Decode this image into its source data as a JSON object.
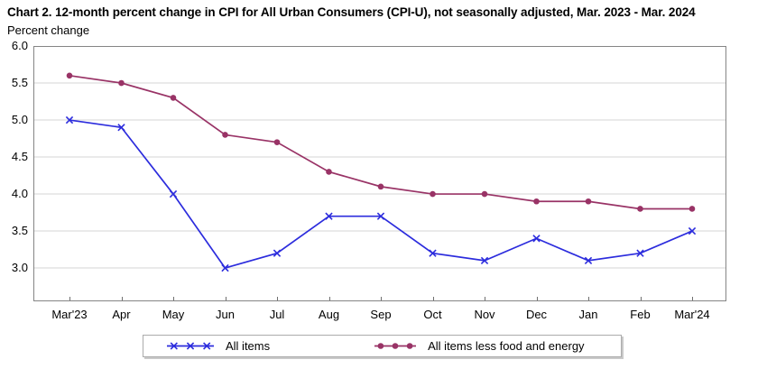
{
  "figure": {
    "title": "Chart 2. 12-month percent change in CPI for All Urban Consumers (CPI-U), not seasonally adjusted, Mar. 2023 - Mar. 2024",
    "units_label": "Percent change"
  },
  "chart_data": {
    "type": "line",
    "title": "Chart 2. 12-month percent change in CPI for All Urban Consumers (CPI-U), not seasonally adjusted, Mar. 2023 - Mar. 2024",
    "xlabel": "",
    "ylabel": "Percent change",
    "categories": [
      "Mar'23",
      "Apr",
      "May",
      "Jun",
      "Jul",
      "Aug",
      "Sep",
      "Oct",
      "Nov",
      "Dec",
      "Jan",
      "Feb",
      "Mar'24"
    ],
    "series": [
      {
        "name": "All items",
        "marker": "x",
        "color": "#2c2cdd",
        "values": [
          5.0,
          4.9,
          4.0,
          3.0,
          3.2,
          3.7,
          3.7,
          3.2,
          3.1,
          3.4,
          3.1,
          3.2,
          3.5
        ]
      },
      {
        "name": "All items less food and energy",
        "marker": "dot",
        "color": "#993366",
        "values": [
          5.6,
          5.5,
          5.3,
          4.8,
          4.7,
          4.3,
          4.1,
          4.0,
          4.0,
          3.9,
          3.9,
          3.8,
          3.8
        ]
      }
    ],
    "y_ticks": [
      "6.0",
      "5.5",
      "5.0",
      "4.5",
      "4.0",
      "3.5",
      "3.0"
    ],
    "ylim": [
      2.55,
      6.0
    ],
    "grid": true,
    "legend_position": "bottom",
    "colors": {
      "gridline": "#d6d6d6",
      "plot_border": "#858585",
      "tick": "#6f6f6f",
      "text": "#000000"
    }
  }
}
